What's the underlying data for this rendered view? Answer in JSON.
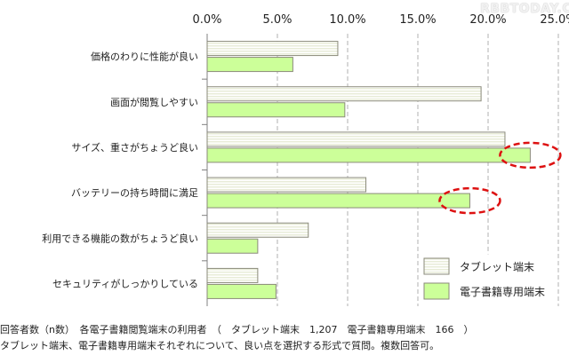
{
  "chart_data": {
    "type": "bar",
    "orientation": "horizontal",
    "title": "",
    "xlabel": "",
    "ylabel": "",
    "xlim": [
      0,
      25
    ],
    "tick_labels": [
      "0.0%",
      "5.0%",
      "10.0%",
      "15.0%",
      "20.0%",
      "25.0%"
    ],
    "grid": true,
    "legend_position": "bottom-right",
    "categories": [
      "価格のわりに性能が良い",
      "画面が閲覧しやすい",
      "サイズ、重さがちょうど良い",
      "バッテリーの持ち時間に満足",
      "利用できる機能の数がちょうど良い",
      "セキュリティがしっかりしている"
    ],
    "series": [
      {
        "name": "タブレット端末",
        "values": [
          9.3,
          19.5,
          21.2,
          11.3,
          7.2,
          3.6
        ],
        "color": "#e8ecd8"
      },
      {
        "name": "電子書籍専用端末",
        "values": [
          6.1,
          9.8,
          23.0,
          18.7,
          3.6,
          4.9
        ],
        "color": "#ccff99"
      }
    ],
    "highlights": [
      {
        "category_index": 2,
        "series_index": 1,
        "color": "#dd1111"
      },
      {
        "category_index": 3,
        "series_index": 1,
        "color": "#dd1111"
      }
    ]
  },
  "footnotes": {
    "line1": "回答者数（n数）　各電子書籍閲覧端末の利用者　（　タブレット端末　1,207　電子書籍専用端末　166　）",
    "line2": "タブレット端末、電子書籍専用端末それぞれについて、良い点を選択する形式で質問。複数回答可。"
  },
  "watermark": "RBBTODAY.COM"
}
